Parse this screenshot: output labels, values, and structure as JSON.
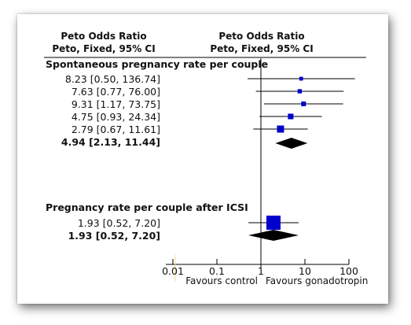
{
  "header": {
    "col1_line1": "Peto Odds Ratio",
    "col1_line2": "Peto, Fixed, 95% CI",
    "col2_line1": "Peto Odds Ratio",
    "col2_line2": "Peto, Fixed, 95% CI"
  },
  "favours": {
    "left": "Favours control",
    "right": "Favours gonadotropin"
  },
  "chart_data": {
    "type": "forest",
    "scale": "log",
    "xlim": [
      0.01,
      100
    ],
    "x_ticks": [
      0.01,
      0.1,
      1,
      10,
      100
    ],
    "x_tick_labels": [
      "0.01",
      "0.1",
      "1",
      "10",
      "100"
    ],
    "null_line": 1,
    "marker_color": "#0000cc",
    "diamond_color": "#000000",
    "groups": [
      {
        "title": "Spontaneous pregnancy rate per couple",
        "studies": [
          {
            "label": "8.23 [0.50, 136.74]",
            "or": 8.23,
            "lo": 0.5,
            "hi": 136.74,
            "weight": 0.12
          },
          {
            "label": "7.63 [0.77, 76.00]",
            "or": 7.63,
            "lo": 0.77,
            "hi": 76.0,
            "weight": 0.16
          },
          {
            "label": "9.31 [1.17, 73.75]",
            "or": 9.31,
            "lo": 1.17,
            "hi": 73.75,
            "weight": 0.2
          },
          {
            "label": "4.75 [0.93, 24.34]",
            "or": 4.75,
            "lo": 0.93,
            "hi": 24.34,
            "weight": 0.27
          },
          {
            "label": "2.79 [0.67, 11.61]",
            "or": 2.79,
            "lo": 0.67,
            "hi": 11.61,
            "weight": 0.4
          }
        ],
        "total": {
          "label": "4.94 [2.13, 11.44]",
          "or": 4.94,
          "lo": 2.13,
          "hi": 11.44
        }
      },
      {
        "title": "Pregnancy rate per couple after ICSI",
        "studies": [
          {
            "label": "1.93 [0.52, 7.20]",
            "or": 1.93,
            "lo": 0.52,
            "hi": 7.2,
            "weight": 1.0
          }
        ],
        "total": {
          "label": "1.93 [0.52, 7.20]",
          "or": 1.93,
          "lo": 0.52,
          "hi": 7.2
        }
      }
    ]
  }
}
